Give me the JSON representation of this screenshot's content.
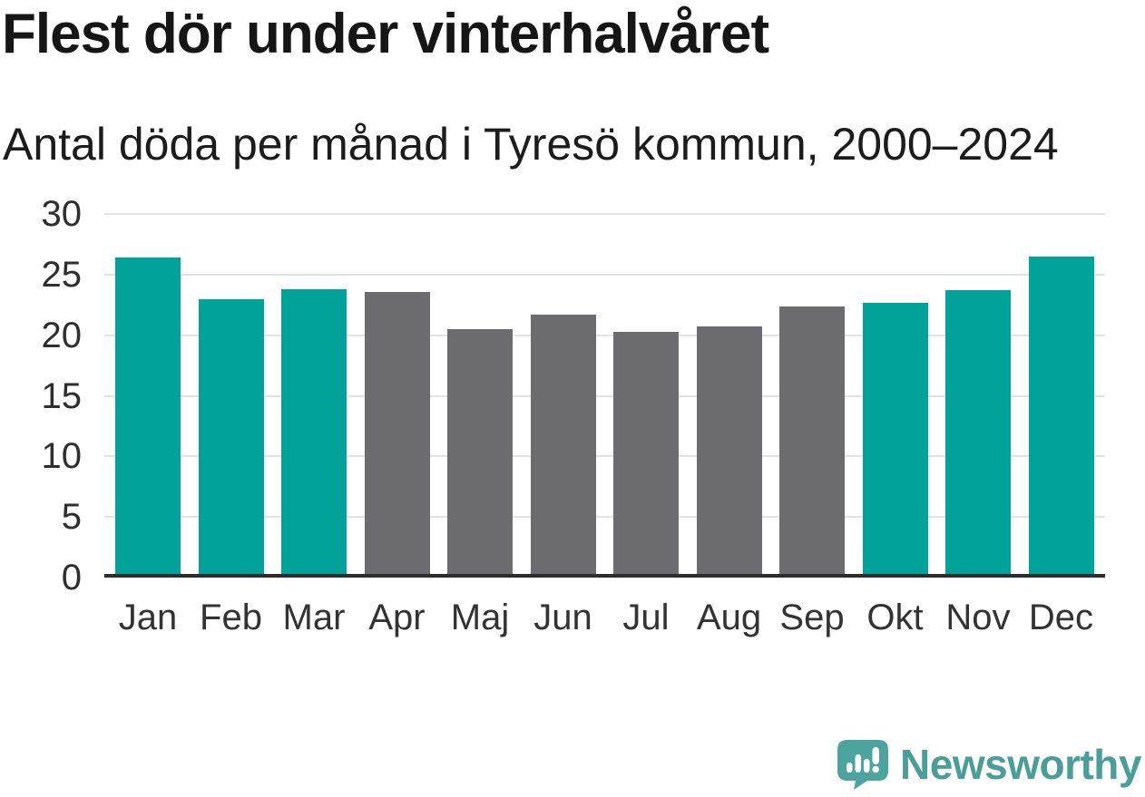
{
  "header": {
    "title": "Flest dör under vinterhalvåret",
    "subtitle": "Antal döda per månad i Tyresö kommun, 2000–2024"
  },
  "chart_data": {
    "type": "bar",
    "title": "Flest dör under vinterhalvåret",
    "subtitle": "Antal döda per månad i Tyresö kommun, 2000–2024",
    "categories": [
      "Jan",
      "Feb",
      "Mar",
      "Apr",
      "Maj",
      "Jun",
      "Jul",
      "Aug",
      "Sep",
      "Okt",
      "Nov",
      "Dec"
    ],
    "values": [
      26.1,
      22.7,
      23.5,
      23.3,
      20.2,
      21.4,
      20.0,
      20.4,
      22.1,
      22.4,
      23.4,
      26.2
    ],
    "bar_colors": [
      "#00A29A",
      "#00A29A",
      "#00A29A",
      "#6B6B70",
      "#6B6B70",
      "#6B6B70",
      "#6B6B70",
      "#6B6B70",
      "#6B6B70",
      "#00A29A",
      "#00A29A",
      "#00A29A"
    ],
    "highlight_color": "#00A29A",
    "muted_color": "#6B6B70",
    "xlabel": "",
    "ylabel": "",
    "ylim": [
      0,
      30
    ],
    "yticks": [
      0,
      5,
      10,
      15,
      20,
      25,
      30
    ],
    "grid": true,
    "gridline_color": "#e2e2e2",
    "axis_line_color": "#2d2d2d",
    "legend_position": "none"
  },
  "footer": {
    "brand": "Newsworthy",
    "brand_color": "#4A9E98",
    "logo_icon": "newsworthy-speech-bubble-bar-chart-icon",
    "logo_icon_color": "#4BA49E"
  }
}
